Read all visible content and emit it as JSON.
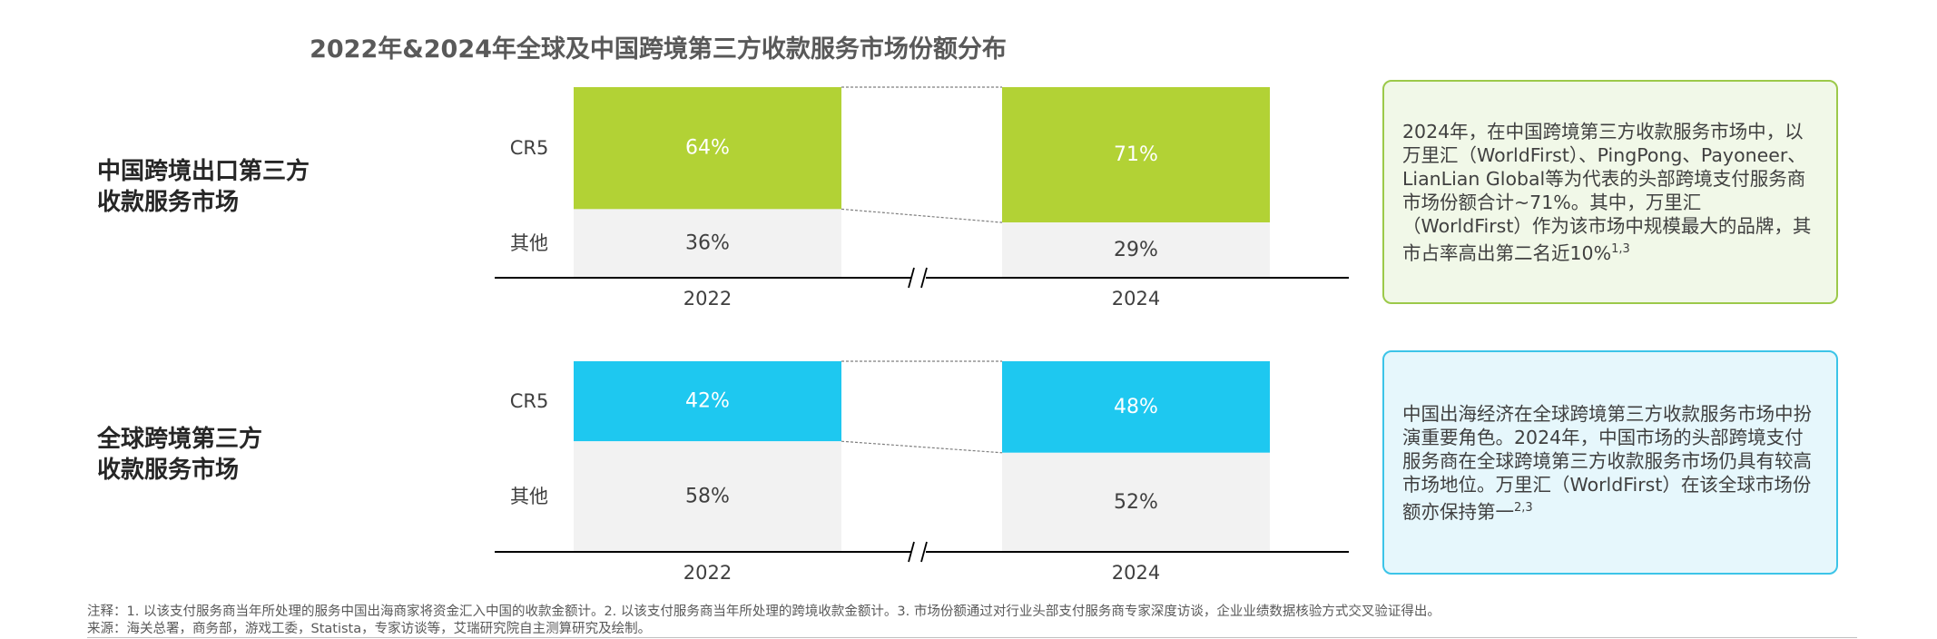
{
  "title": "2022年&2024年全球及中国跨境第三方收款服务市场份额分布",
  "chart_data": [
    {
      "type": "bar",
      "stacked": true,
      "title": "中国跨境出口第三方收款服务市场",
      "categories": [
        "2022",
        "2024"
      ],
      "series": [
        {
          "name": "CR5",
          "values": [
            64,
            71
          ],
          "labels": [
            "64%",
            "71%"
          ],
          "color": "#b2d235"
        },
        {
          "name": "其他",
          "values": [
            36,
            29
          ],
          "labels": [
            "36%",
            "29%"
          ],
          "color": "#f2f2f2"
        }
      ],
      "ylim": [
        0,
        100
      ],
      "grid": false,
      "axis_break": true
    },
    {
      "type": "bar",
      "stacked": true,
      "title": "全球跨境第三方收款服务市场",
      "categories": [
        "2022",
        "2024"
      ],
      "series": [
        {
          "name": "CR5",
          "values": [
            42,
            48
          ],
          "labels": [
            "42%",
            "48%"
          ],
          "color": "#1ec8f0"
        },
        {
          "name": "其他",
          "values": [
            58,
            52
          ],
          "labels": [
            "58%",
            "52%"
          ],
          "color": "#f2f2f2"
        }
      ],
      "ylim": [
        0,
        100
      ],
      "grid": false,
      "axis_break": true
    }
  ],
  "rows": [
    {
      "label_line1": "中国跨境出口第三方",
      "label_line2": "收款服务市场"
    },
    {
      "label_line1": "全球跨境第三方",
      "label_line2": "收款服务市场"
    }
  ],
  "notes": [
    {
      "text": "2024年，在中国跨境第三方收款服务市场中，以万里汇（WorldFirst）、PingPong、Payoneer、LianLian Global等为代表的头部跨境支付服务商市场份额合计~71%。其中，万里汇（WorldFirst）作为该市场中规模最大的品牌，其市占率高出第二名近10%",
      "sup": "1,3",
      "border_color": "#9cc94a"
    },
    {
      "text": "中国出海经济在全球跨境第三方收款服务市场中扮演重要角色。2024年，中国市场的头部跨境支付服务商在全球跨境第三方收款服务市场仍具有较高市场地位。万里汇（WorldFirst）在该全球市场份额亦保持第一",
      "sup": "2,3",
      "border_color": "#3cc4e8"
    }
  ],
  "footnote_note": "注释：1. 以该支付服务商当年所处理的服务中国出海商家将资金汇入中国的收款金额计。2. 以该支付服务商当年所处理的跨境收款金额计。3. 市场份额通过对行业头部支付服务商专家深度访谈，企业业绩数据核验方式交叉验证得出。",
  "footnote_source": "来源：海关总署，商务部，游戏工委，Statista，专家访谈等，艾瑞研究院自主测算研究及绘制。"
}
